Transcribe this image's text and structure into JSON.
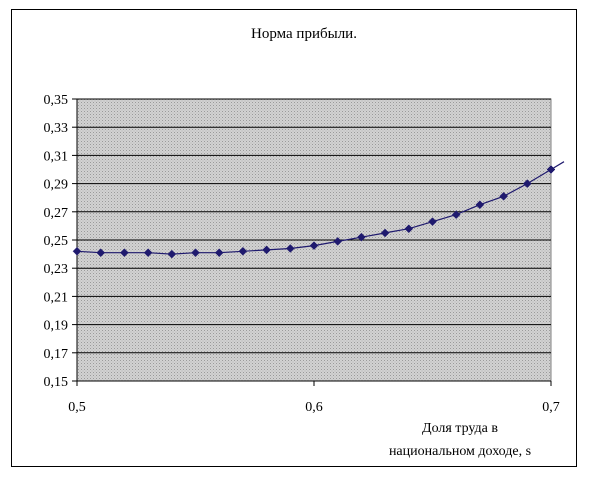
{
  "chart_data": {
    "type": "line",
    "title": "Норма прибыли.",
    "xlabel_lines": [
      "Доля труда в",
      "национальном доходе, s"
    ],
    "xlim": [
      0.5,
      0.7
    ],
    "ylim": [
      0.15,
      0.35
    ],
    "x_ticks": [
      0.5,
      0.6,
      0.7
    ],
    "x_tick_labels": [
      "0,5",
      "0,6",
      "0,7"
    ],
    "y_ticks": [
      0.15,
      0.17,
      0.19,
      0.21,
      0.23,
      0.25,
      0.27,
      0.29,
      0.31,
      0.33,
      0.35
    ],
    "y_tick_labels": [
      "0,15",
      "0,17",
      "0,19",
      "0,21",
      "0,23",
      "0,25",
      "0,27",
      "0,29",
      "0,31",
      "0,33",
      "0,35"
    ],
    "grid": "horizontal",
    "series": [
      {
        "color": "#1f1a6e",
        "marker": "diamond",
        "x": [
          0.5,
          0.51,
          0.52,
          0.53,
          0.54,
          0.55,
          0.56,
          0.57,
          0.58,
          0.59,
          0.6,
          0.61,
          0.62,
          0.63,
          0.64,
          0.65,
          0.66,
          0.67,
          0.68,
          0.69,
          0.7
        ],
        "y": [
          0.242,
          0.241,
          0.241,
          0.241,
          0.24,
          0.241,
          0.241,
          0.242,
          0.243,
          0.244,
          0.246,
          0.249,
          0.252,
          0.255,
          0.258,
          0.263,
          0.268,
          0.275,
          0.281,
          0.29,
          0.3
        ]
      }
    ]
  },
  "colors": {
    "plot_area": "#c8c8c8",
    "gridline": "#000000",
    "series": "#1f1a6e"
  }
}
